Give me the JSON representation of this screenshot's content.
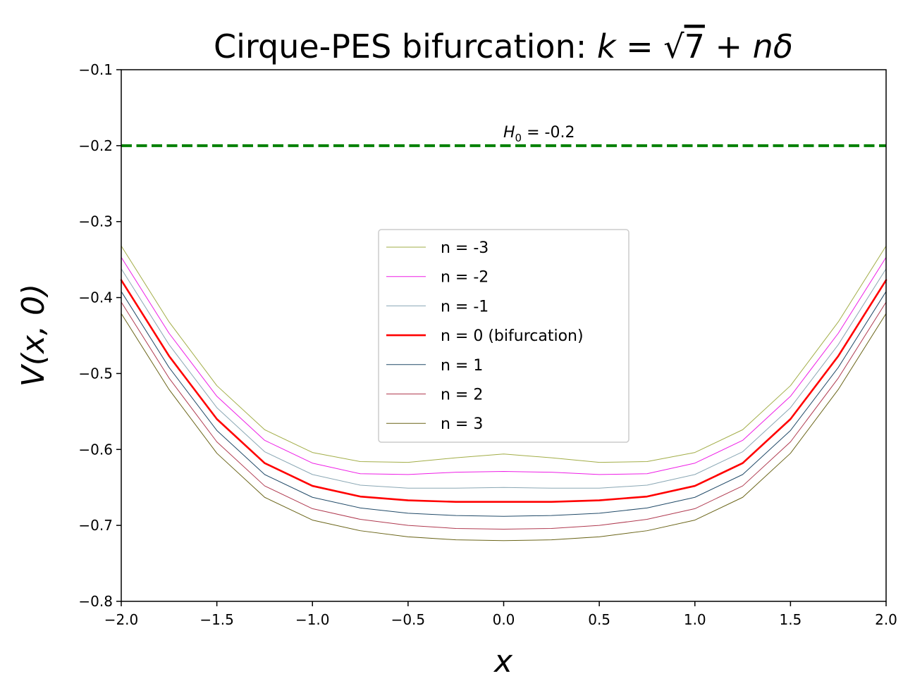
{
  "chart_data": {
    "type": "line",
    "title": "Cirque-PES bifurcation: k = √7 + nδ",
    "title_parts": {
      "prefix": "Cirque-PES bifurcation: ",
      "k": "k",
      "eq": " = ",
      "sqrt_arg": "7",
      "plus": " + ",
      "n": "n",
      "delta": "δ"
    },
    "xlabel": "x",
    "ylabel": "V(x, 0)",
    "xlim": [
      -2.0,
      2.0
    ],
    "ylim": [
      -0.8,
      -0.1
    ],
    "x_ticks": [
      "−2.0",
      "−1.5",
      "−1.0",
      "−0.5",
      "0.0",
      "0.5",
      "1.0",
      "1.5",
      "2.0"
    ],
    "x_tick_values": [
      -2.0,
      -1.5,
      -1.0,
      -0.5,
      0.0,
      0.5,
      1.0,
      1.5,
      2.0
    ],
    "y_ticks": [
      "−0.1",
      "−0.2",
      "−0.3",
      "−0.4",
      "−0.5",
      "−0.6",
      "−0.7",
      "−0.8"
    ],
    "y_tick_values": [
      -0.1,
      -0.2,
      -0.3,
      -0.4,
      -0.5,
      -0.6,
      -0.7,
      -0.8
    ],
    "grid": false,
    "legend_placement": "center",
    "reference_line": {
      "y": -0.2,
      "label_sym": "H",
      "label_sub": "0",
      "label_val": " = -0.2",
      "color": "#008000",
      "style": "dashed"
    },
    "x": [
      -2.0,
      -1.75,
      -1.5,
      -1.25,
      -1.0,
      -0.75,
      -0.5,
      -0.25,
      0.0,
      0.25,
      0.5,
      0.75,
      1.0,
      1.25,
      1.5,
      1.75,
      2.0
    ],
    "series": [
      {
        "name": "n = -3",
        "color": "#a2ad47",
        "width": 1,
        "values": [
          -0.332,
          -0.432,
          -0.516,
          -0.574,
          -0.604,
          -0.616,
          -0.617,
          -0.611,
          -0.606,
          -0.611,
          -0.617,
          -0.616,
          -0.604,
          -0.574,
          -0.516,
          -0.432,
          -0.332
        ]
      },
      {
        "name": "n = -2",
        "color": "#ee1ee6",
        "width": 1,
        "values": [
          -0.347,
          -0.447,
          -0.53,
          -0.588,
          -0.618,
          -0.632,
          -0.633,
          -0.63,
          -0.629,
          -0.63,
          -0.633,
          -0.632,
          -0.618,
          -0.588,
          -0.53,
          -0.447,
          -0.347
        ]
      },
      {
        "name": "n = -1",
        "color": "#8aa7b4",
        "width": 1,
        "values": [
          -0.362,
          -0.462,
          -0.545,
          -0.603,
          -0.633,
          -0.647,
          -0.651,
          -0.651,
          -0.65,
          -0.651,
          -0.651,
          -0.647,
          -0.633,
          -0.603,
          -0.545,
          -0.462,
          -0.362
        ]
      },
      {
        "name": "n = 0 (bifurcation)",
        "color": "#ff0000",
        "width": 2.6,
        "values": [
          -0.377,
          -0.477,
          -0.56,
          -0.618,
          -0.648,
          -0.662,
          -0.667,
          -0.669,
          -0.669,
          -0.669,
          -0.667,
          -0.662,
          -0.648,
          -0.618,
          -0.56,
          -0.477,
          -0.377
        ]
      },
      {
        "name": "n = 1",
        "color": "#214a68",
        "width": 1,
        "values": [
          -0.392,
          -0.492,
          -0.575,
          -0.633,
          -0.663,
          -0.677,
          -0.684,
          -0.687,
          -0.688,
          -0.687,
          -0.684,
          -0.677,
          -0.663,
          -0.633,
          -0.575,
          -0.492,
          -0.392
        ]
      },
      {
        "name": "n = 2",
        "color": "#b03a50",
        "width": 1,
        "values": [
          -0.406,
          -0.506,
          -0.59,
          -0.648,
          -0.678,
          -0.692,
          -0.7,
          -0.704,
          -0.705,
          -0.704,
          -0.7,
          -0.692,
          -0.678,
          -0.648,
          -0.59,
          -0.506,
          -0.406
        ]
      },
      {
        "name": "n = 3",
        "color": "#6a6418",
        "width": 1,
        "values": [
          -0.421,
          -0.521,
          -0.605,
          -0.663,
          -0.693,
          -0.707,
          -0.715,
          -0.719,
          -0.72,
          -0.719,
          -0.715,
          -0.707,
          -0.693,
          -0.663,
          -0.605,
          -0.521,
          -0.421
        ]
      }
    ]
  }
}
